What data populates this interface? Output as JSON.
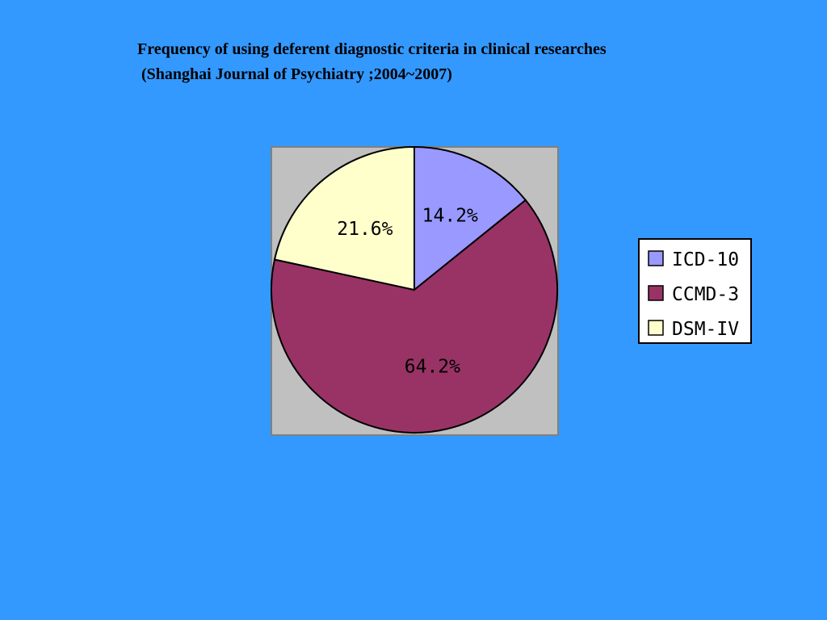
{
  "chart_data": {
    "type": "pie",
    "title": "Frequency of using deferent diagnostic criteria in clinical researches",
    "subtitle": " (Shanghai Journal of Psychiatry ;2004~2007)",
    "slices": [
      {
        "name": "ICD-10",
        "value": 14.2,
        "label": "14.2%",
        "color": "#9999ff"
      },
      {
        "name": "CCMD-3",
        "value": 64.2,
        "label": "64.2%",
        "color": "#993366"
      },
      {
        "name": "DSM-IV",
        "value": 21.6,
        "label": "21.6%",
        "color": "#ffffcc"
      }
    ],
    "plot_background": "#c0c0c0",
    "legend_position": "right"
  },
  "colors": {
    "page_background": "#3399ff"
  }
}
